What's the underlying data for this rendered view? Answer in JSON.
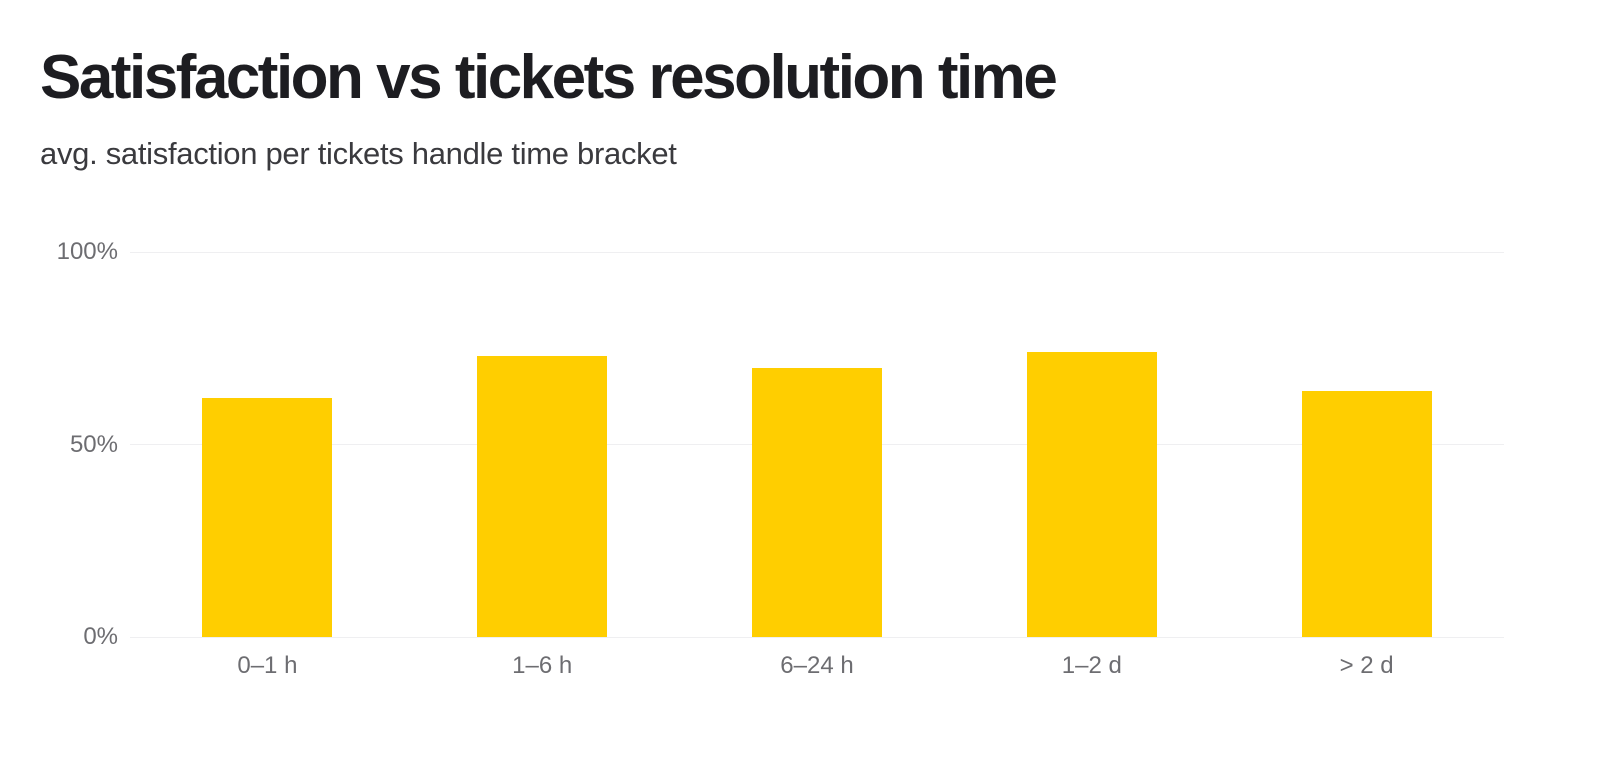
{
  "header": {
    "title": "Satisfaction vs tickets resolution time",
    "subtitle": "avg. satisfaction per tickets handle time bracket"
  },
  "chart_data": {
    "type": "bar",
    "title": "Satisfaction vs tickets resolution time",
    "subtitle": "avg. satisfaction per tickets handle time bracket",
    "series_name": "avg. satisfaction",
    "categories": [
      "0–1 h",
      "1–6 h",
      "6–24 h",
      "1–2 d",
      "> 2 d"
    ],
    "values": [
      62,
      73,
      70,
      74,
      64
    ],
    "unit": "%",
    "xlabel": "",
    "ylabel": "",
    "ylim": [
      0,
      100
    ],
    "yticks": [
      0,
      50,
      100
    ],
    "ytick_labels": [
      "0%",
      "50%",
      "100%"
    ],
    "grid": true,
    "legend": false,
    "bar_color": "#FFCE00",
    "gridline_color": "#efeff1",
    "tick_label_color": "#6d6d71",
    "title_color": "#1d1d21",
    "subtitle_color": "#3a3a3e",
    "background_color": "#ffffff"
  }
}
